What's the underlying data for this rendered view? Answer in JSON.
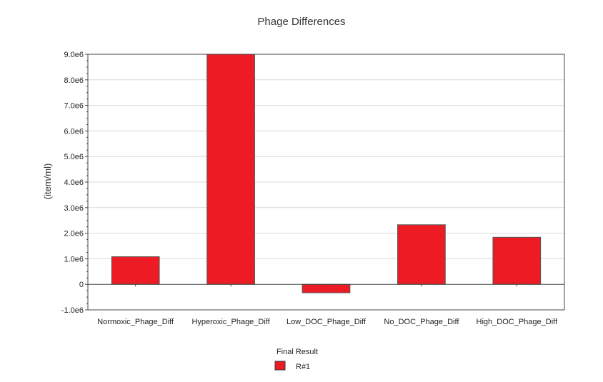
{
  "chart_data": {
    "type": "bar",
    "title": "Phage Differences",
    "xlabel": "",
    "ylabel": "(item/ml)",
    "categories": [
      "Normoxic_Phage_Diff",
      "Hyperoxic_Phage_Diff",
      "Low_DOC_Phage_Diff",
      "No_DOC_Phage_Diff",
      "High_DOC_Phage_Diff"
    ],
    "series": [
      {
        "name": "R#1",
        "color": "#ed1c24",
        "values": [
          1080000,
          9000000,
          -330000,
          2330000,
          1840000
        ]
      }
    ],
    "ylim": [
      -1000000,
      9000000
    ],
    "yticks": [
      -1000000,
      0,
      1000000,
      2000000,
      3000000,
      4000000,
      5000000,
      6000000,
      7000000,
      8000000,
      9000000
    ],
    "ytick_labels": [
      "-1.0e6",
      "0",
      "1.0e6",
      "2.0e6",
      "3.0e6",
      "4.0e6",
      "5.0e6",
      "6.0e6",
      "7.0e6",
      "8.0e6",
      "9.0e6"
    ],
    "grid": true,
    "legend": {
      "title": "Final Result",
      "position": "bottom-center"
    }
  }
}
